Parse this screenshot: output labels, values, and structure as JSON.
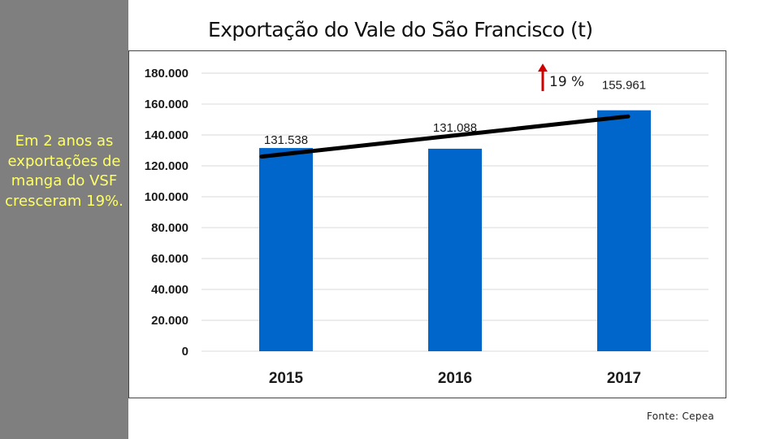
{
  "title": "Exportação do Vale do São Francisco (t)",
  "sidebar": {
    "text": "Em 2 anos as exportações de manga do VSF cresceram 19%."
  },
  "source": "Fonte: Cepea",
  "colors": {
    "sidebar_bg": "#7f7f7f",
    "sidebar_text": "#ffff66",
    "bar": "#0066cc",
    "trend": "#000000",
    "arrow": "#d00000"
  },
  "chart_data": {
    "type": "bar",
    "title": "Exportação do Vale do São Francisco (t)",
    "categories": [
      "2015",
      "2016",
      "2017"
    ],
    "values": [
      131538,
      131088,
      155961
    ],
    "data_labels": [
      "131.538",
      "131.088",
      "155.961"
    ],
    "ylim": [
      0,
      180000
    ],
    "yticks": [
      0,
      20000,
      40000,
      60000,
      80000,
      100000,
      120000,
      140000,
      160000,
      180000
    ],
    "ytick_labels": [
      "0",
      "20.000",
      "40.000",
      "60.000",
      "80.000",
      "100.000",
      "120.000",
      "140.000",
      "160.000",
      "180.000"
    ],
    "grid": true,
    "trend_line": {
      "from": 126000,
      "to": 152000
    },
    "annotation": {
      "text": "19 %",
      "arrow": "up",
      "level": 181000
    }
  }
}
